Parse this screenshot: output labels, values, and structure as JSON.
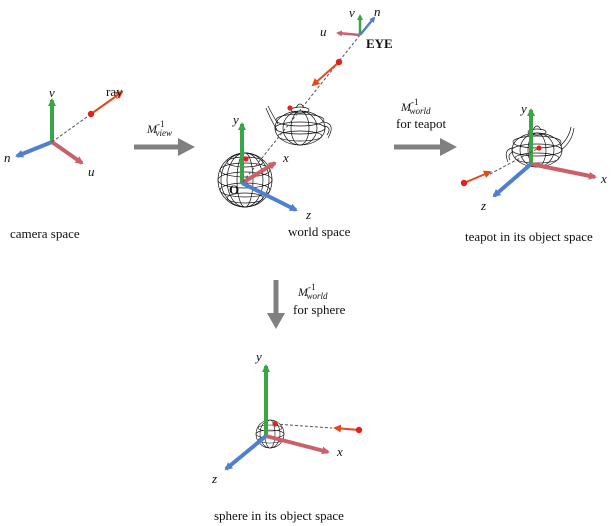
{
  "panels": {
    "camera": {
      "caption": "camera space",
      "axes": {
        "v": "v",
        "n": "n",
        "u": "u"
      },
      "ray_label": "ray"
    },
    "world": {
      "caption": "world space",
      "origin_label": "O",
      "axes": {
        "y": "y",
        "x": "x",
        "z": "z"
      },
      "eye_label": "EYE",
      "eye_axes": {
        "v": "v",
        "n": "n",
        "u": "u"
      }
    },
    "teapot": {
      "caption": "teapot in its object space",
      "axes": {
        "y": "y",
        "x": "x",
        "z": "z"
      }
    },
    "sphere": {
      "caption": "sphere in its object space",
      "axes": {
        "y": "y",
        "x": "x",
        "z": "z"
      }
    }
  },
  "transforms": {
    "view": {
      "symbol": "M",
      "sup": "-1",
      "sub": "view",
      "note": ""
    },
    "world_teapot": {
      "symbol": "M",
      "sup": "-1",
      "sub": "world",
      "note": "for teapot"
    },
    "world_sphere": {
      "symbol": "M",
      "sup": "-1",
      "sub": "world",
      "note": "for sphere"
    }
  },
  "colors": {
    "axis_green": "#3aa544",
    "axis_blue": "#4f7fcf",
    "axis_red": "#c9606a",
    "ray_orange": "#e24a1e",
    "ray_dot": "#e0221b",
    "transform_arrow": "#808080"
  }
}
